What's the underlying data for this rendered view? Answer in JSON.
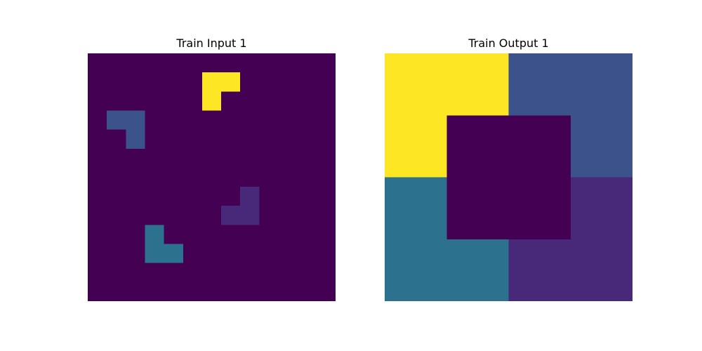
{
  "palette": {
    "0": "#440154",
    "1": "#3b528b",
    "2": "#21918c",
    "3": "#5ec962",
    "4": "#fde725",
    "5": "#482878",
    "6": "#2c728e"
  },
  "panels": [
    {
      "title": "Train Input 1",
      "grid": [
        [
          0,
          0,
          0,
          0,
          0,
          0,
          0,
          0,
          0,
          0,
          0,
          0,
          0
        ],
        [
          0,
          0,
          0,
          0,
          0,
          0,
          4,
          4,
          0,
          0,
          0,
          0,
          0
        ],
        [
          0,
          0,
          0,
          0,
          0,
          0,
          4,
          0,
          0,
          0,
          0,
          0,
          0
        ],
        [
          0,
          1,
          1,
          0,
          0,
          0,
          0,
          0,
          0,
          0,
          0,
          0,
          0
        ],
        [
          0,
          0,
          1,
          0,
          0,
          0,
          0,
          0,
          0,
          0,
          0,
          0,
          0
        ],
        [
          0,
          0,
          0,
          0,
          0,
          0,
          0,
          0,
          0,
          0,
          0,
          0,
          0
        ],
        [
          0,
          0,
          0,
          0,
          0,
          0,
          0,
          0,
          0,
          0,
          0,
          0,
          0
        ],
        [
          0,
          0,
          0,
          0,
          0,
          0,
          0,
          0,
          5,
          0,
          0,
          0,
          0
        ],
        [
          0,
          0,
          0,
          0,
          0,
          0,
          0,
          5,
          5,
          0,
          0,
          0,
          0
        ],
        [
          0,
          0,
          0,
          6,
          0,
          0,
          0,
          0,
          0,
          0,
          0,
          0,
          0
        ],
        [
          0,
          0,
          0,
          6,
          6,
          0,
          0,
          0,
          0,
          0,
          0,
          0,
          0
        ],
        [
          0,
          0,
          0,
          0,
          0,
          0,
          0,
          0,
          0,
          0,
          0,
          0,
          0
        ],
        [
          0,
          0,
          0,
          0,
          0,
          0,
          0,
          0,
          0,
          0,
          0,
          0,
          0
        ]
      ]
    },
    {
      "title": "Train Output 1",
      "grid": [
        [
          4,
          4,
          1,
          1
        ],
        [
          4,
          0,
          0,
          1
        ],
        [
          6,
          0,
          0,
          5
        ],
        [
          6,
          6,
          5,
          5
        ]
      ]
    }
  ]
}
